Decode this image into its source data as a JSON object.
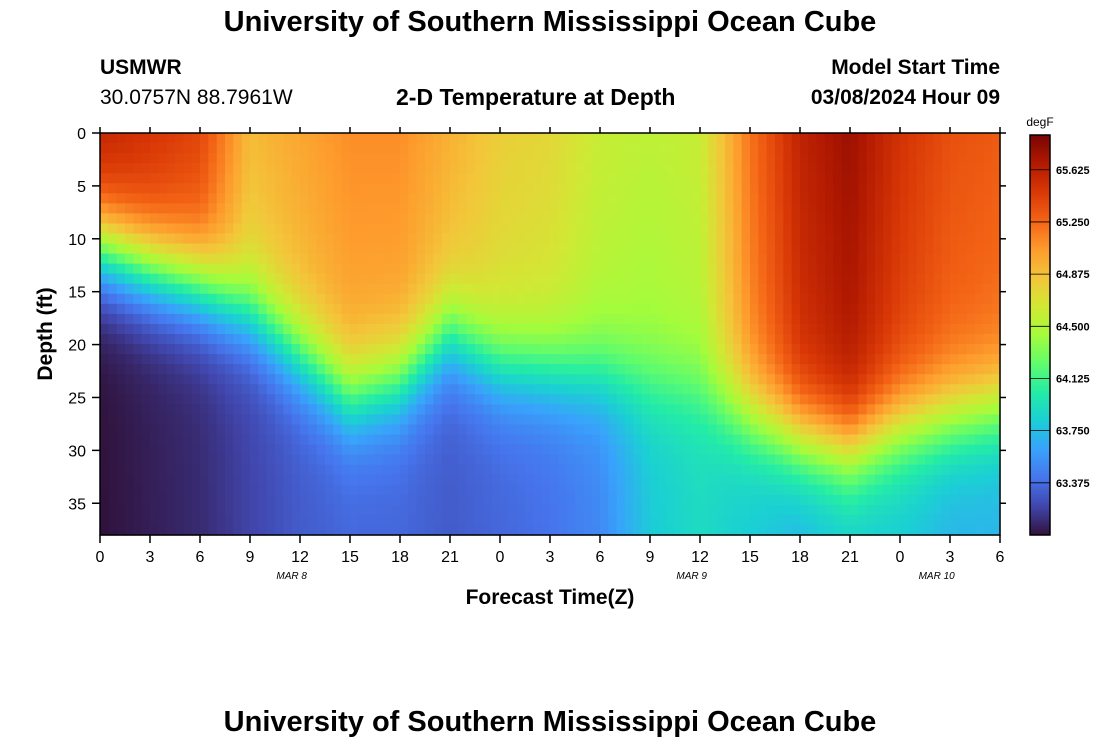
{
  "header": {
    "title": "University of Southern Mississippi Ocean Cube",
    "station": "USMWR",
    "coords": "30.0757N  88.7961W",
    "subtitle": "2-D Temperature at Depth",
    "start_label": "Model Start Time",
    "start_value": "03/08/2024 Hour 09"
  },
  "footer": {
    "title": "University of Southern Mississippi Ocean Cube"
  },
  "chart_data": {
    "type": "heatmap",
    "title": "2-D Temperature at Depth",
    "xlabel": "Forecast Time(Z)",
    "ylabel": "Depth (ft)",
    "x_ticks": [
      "0",
      "3",
      "6",
      "9",
      "12",
      "15",
      "18",
      "21",
      "0",
      "3",
      "6",
      "9",
      "12",
      "15",
      "18",
      "21",
      "0",
      "3",
      "6"
    ],
    "x_range_hours": [
      0,
      54
    ],
    "date_labels": [
      {
        "label": "MAR 8",
        "hour": 11.5
      },
      {
        "label": "MAR 9",
        "hour": 35.5
      },
      {
        "label": "MAR 10",
        "hour": 50.2
      }
    ],
    "y_ticks": [
      0,
      5,
      10,
      15,
      20,
      25,
      30,
      35
    ],
    "y_range_ft": [
      0,
      38
    ],
    "colorbar": {
      "unit": "degF",
      "ticks": [
        65.625,
        65.25,
        64.875,
        64.5,
        64.125,
        63.75,
        63.375
      ],
      "range": [
        63.0,
        65.875
      ],
      "colors": [
        "#30123b",
        "#4145ab",
        "#4675ed",
        "#39a2fc",
        "#1bcfd4",
        "#24eca6",
        "#61fc6c",
        "#a4fc3b",
        "#d1e834",
        "#f3c63a",
        "#fe9b2d",
        "#f36315",
        "#d93806",
        "#b11901",
        "#7a0402"
      ]
    },
    "time_hours": [
      0,
      3,
      6,
      9,
      12,
      15,
      18,
      21,
      24,
      27,
      30,
      33,
      36,
      39,
      42,
      45,
      48,
      51,
      54
    ],
    "surface_temp_degF": [
      65.6,
      65.5,
      65.4,
      64.9,
      65.0,
      65.1,
      65.1,
      64.95,
      64.8,
      64.75,
      64.6,
      64.55,
      64.6,
      65.2,
      65.6,
      65.75,
      65.5,
      65.35,
      65.3
    ],
    "thermocline_depth_ft": [
      11,
      13,
      14.5,
      17,
      21,
      25,
      23.5,
      19,
      22,
      22.5,
      23,
      24,
      24.5,
      27,
      29,
      30,
      28,
      27,
      26
    ],
    "bottom_temp_degF": [
      63.0,
      63.05,
      63.1,
      63.2,
      63.3,
      63.35,
      63.35,
      63.3,
      63.35,
      63.4,
      63.5,
      63.8,
      63.9,
      63.8,
      63.7,
      63.8,
      63.8,
      63.7,
      63.7
    ]
  }
}
